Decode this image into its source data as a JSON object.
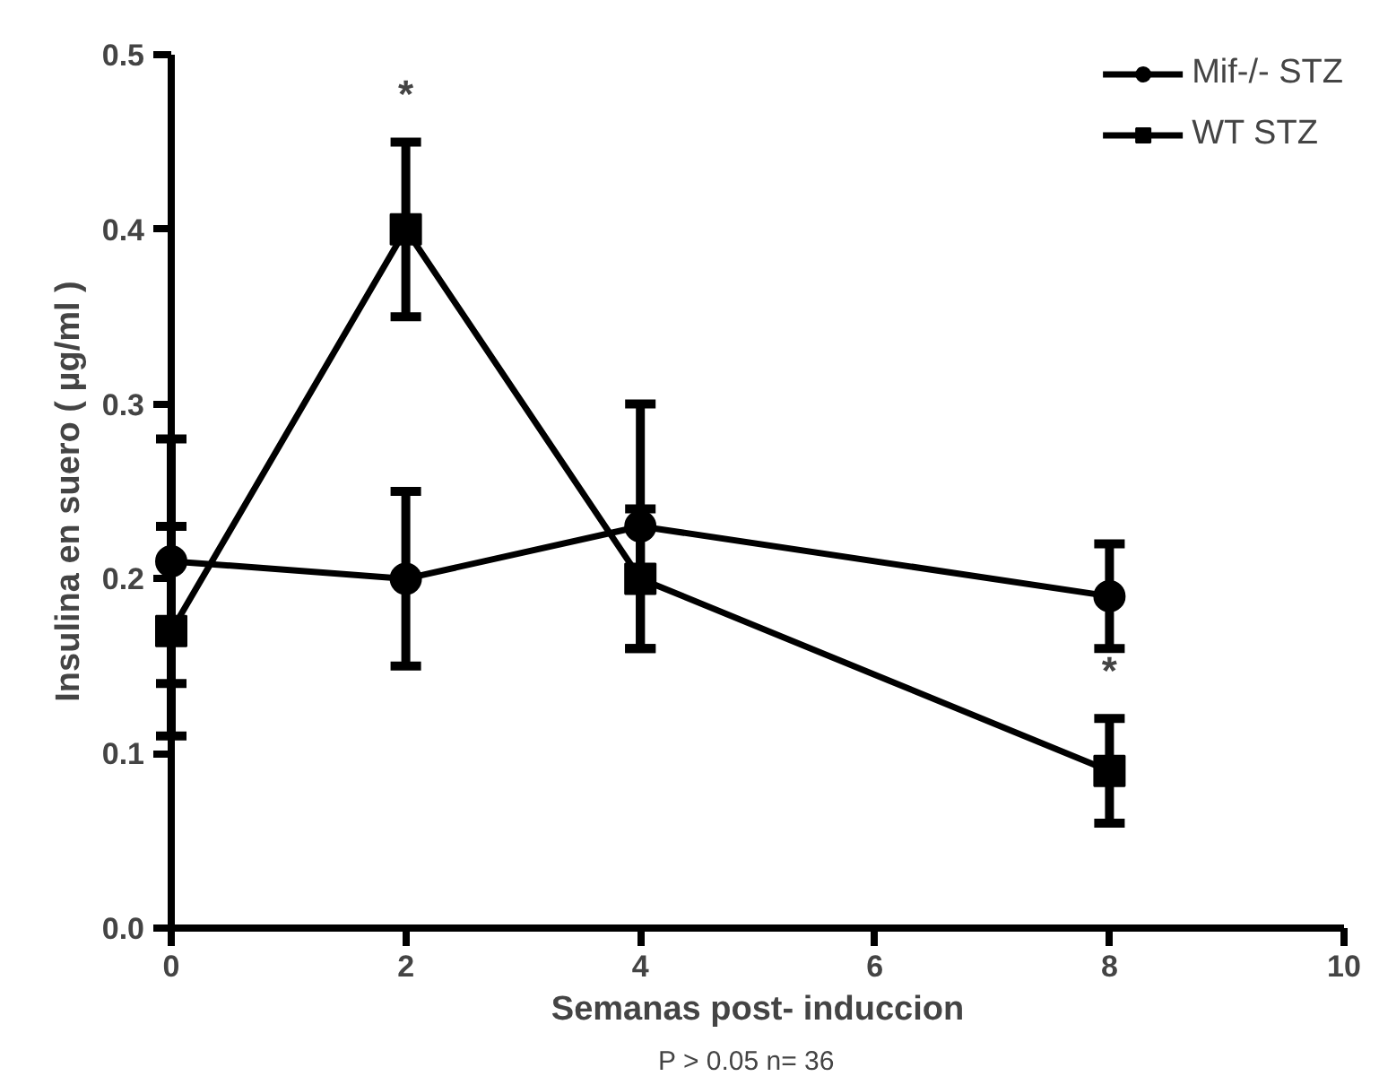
{
  "chart_data": {
    "type": "line",
    "xlabel": "Semanas post- induccion",
    "ylabel": "Insulina en suero ( µg/ml )",
    "xlim": [
      0,
      10
    ],
    "xticks": [
      0,
      2,
      4,
      6,
      8,
      10
    ],
    "ylim": [
      0,
      0.5
    ],
    "yticks": [
      {
        "value": 0,
        "label": "0.0"
      },
      0.1,
      0.2,
      0.3,
      0.4,
      0.5
    ],
    "x": [
      0,
      2,
      4,
      8
    ],
    "series": [
      {
        "name": "Mif-/- STZ",
        "color": "#000000",
        "marker": "circle",
        "values": [
          0.21,
          0.2,
          0.23,
          0.19
        ],
        "errors": [
          0.07,
          0.05,
          0.07,
          0.03
        ]
      },
      {
        "name": "WT STZ",
        "color": "#000000",
        "marker": "square",
        "values": [
          0.17,
          0.4,
          0.2,
          0.09
        ],
        "errors": [
          0.06,
          0.05,
          0.04,
          0.03
        ]
      }
    ],
    "annotations": [
      {
        "text": "*",
        "x": 2,
        "y": 0.45
      },
      {
        "text": "*",
        "x": 8,
        "y": 0.12
      },
      "P > 0.05    n= 36"
    ],
    "grid": false,
    "legend": "top right",
    "line_style": "solid"
  }
}
